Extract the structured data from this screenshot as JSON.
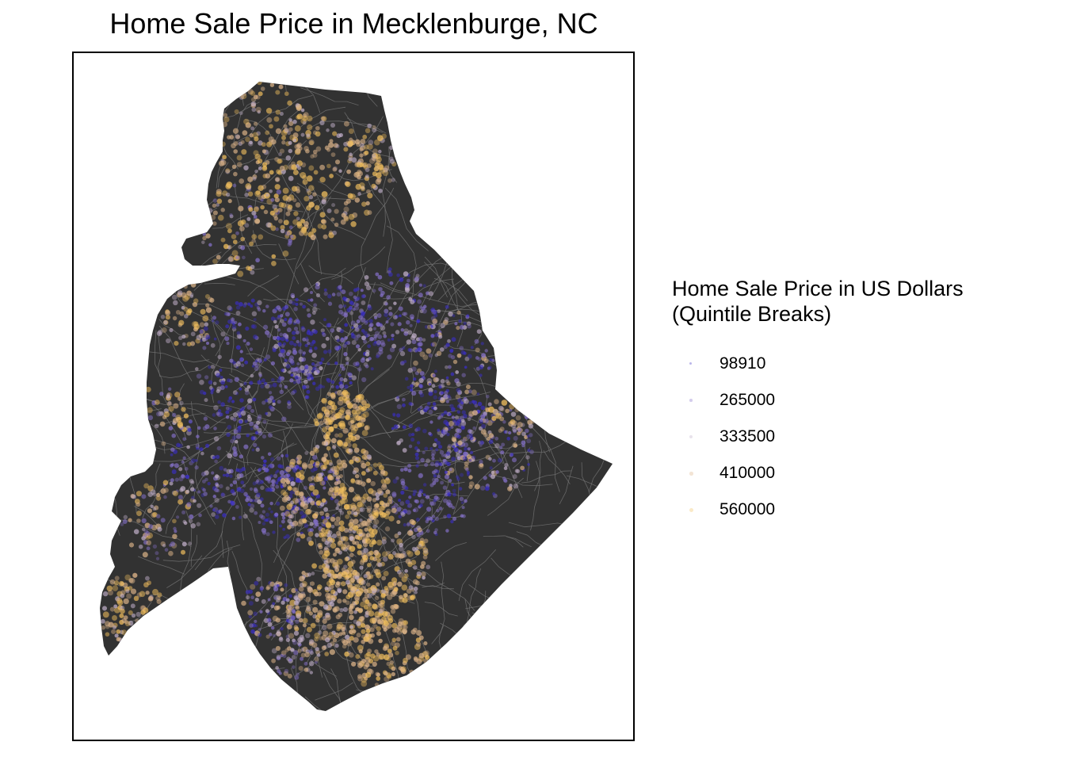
{
  "map": {
    "title": "Home Sale Price in Mecklenburge, NC",
    "county_fill": "#323232",
    "road_color": "#777777"
  },
  "legend": {
    "title_line1": "Home Sale Price in US Dollars",
    "title_line2": "(Quintile Breaks)",
    "items": [
      {
        "label": "98910",
        "color": "#3a2ec4"
      },
      {
        "label": "265000",
        "color": "#8470c8"
      },
      {
        "label": "333500",
        "color": "#c0aec8"
      },
      {
        "label": "410000",
        "color": "#dcb388"
      },
      {
        "label": "560000",
        "color": "#f2bf5e"
      }
    ]
  }
}
